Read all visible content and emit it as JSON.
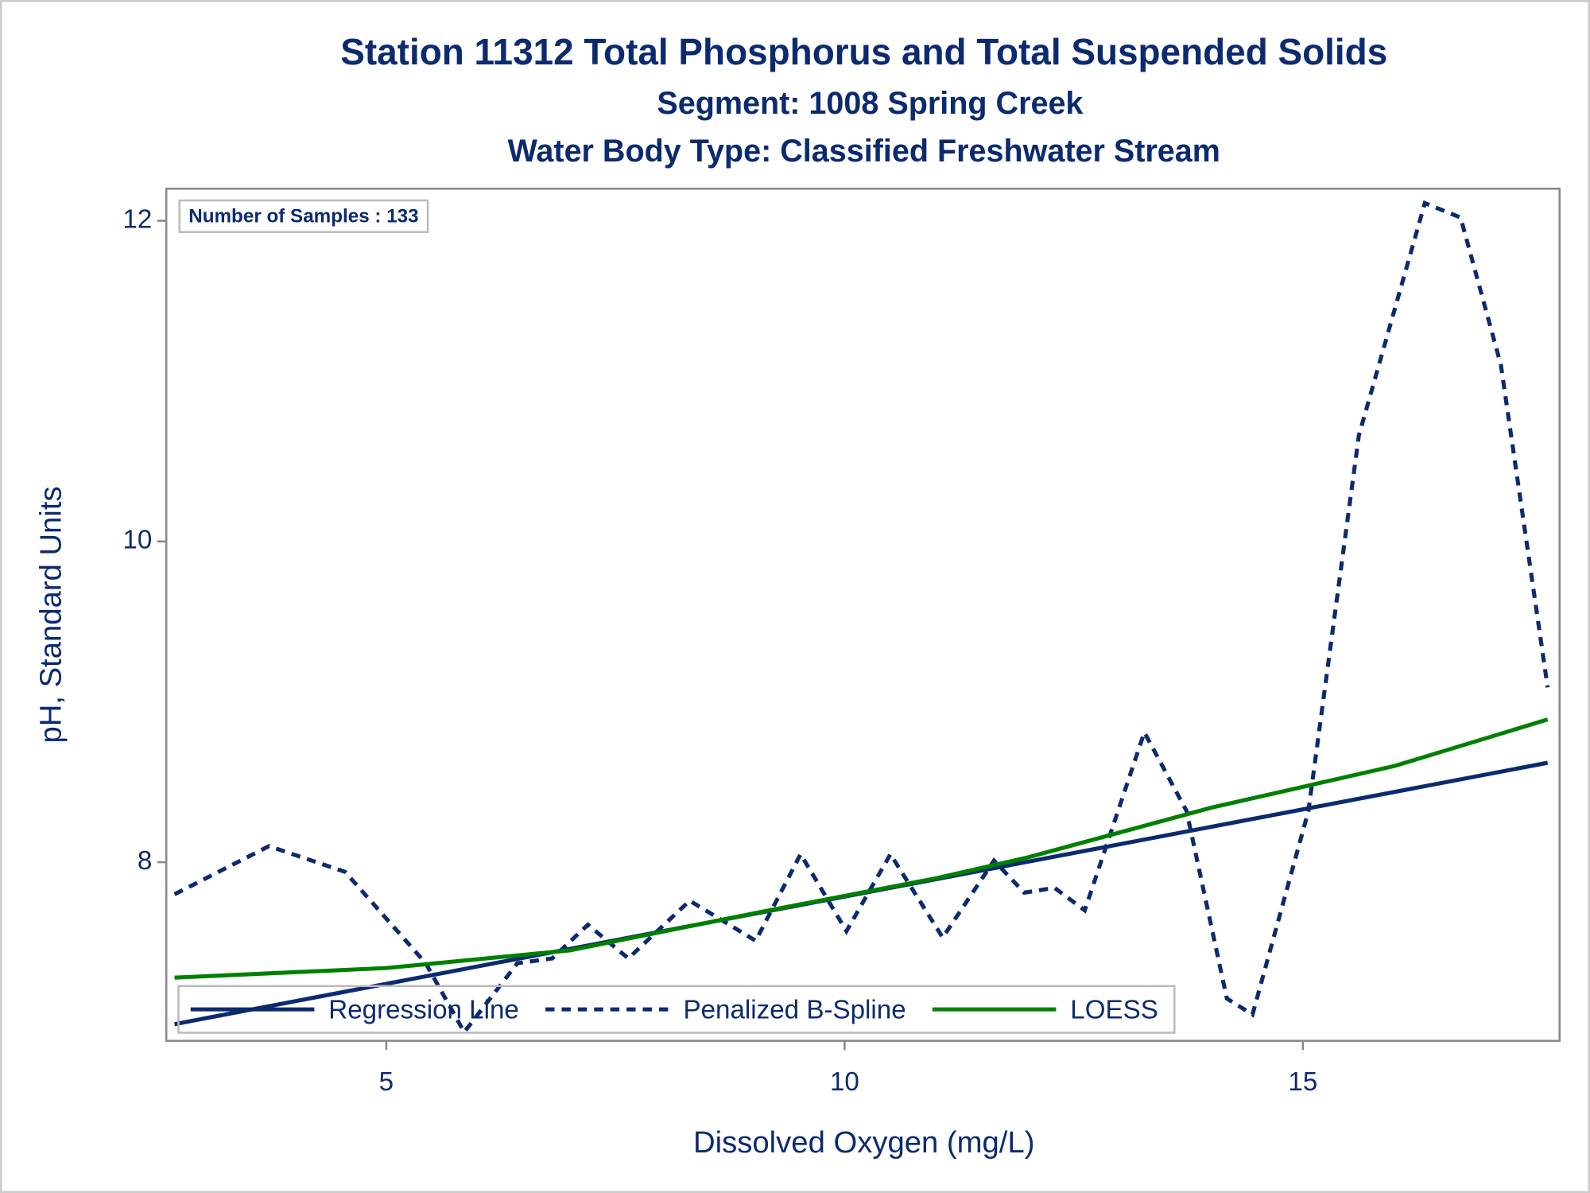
{
  "chart_data": {
    "type": "line",
    "title": "Station 11312  Total Phosphorus and Total Suspended Solids",
    "subtitle": "Segment: 1008  Spring Creek",
    "subtitle2": "Water Body Type: Classified Freshwater Stream",
    "annotation": "Number of Samples : 133",
    "x_label": "Dissolved Oxygen (mg/L)",
    "y_label": "pH, Standard Units",
    "xlim": [
      2.6,
      17.8
    ],
    "xticks": [
      5,
      10,
      15
    ],
    "ylim": [
      6.886,
      12.2
    ],
    "yticks": [
      8,
      10,
      12
    ],
    "legend": "lower left",
    "series": [
      {
        "name": "Regression Line",
        "color": "#0b2a6f",
        "dash": false,
        "x": [
          2.69,
          17.67
        ],
        "values": [
          6.99,
          8.62
        ]
      },
      {
        "name": "Penalized B-Spline",
        "color": "#0b2a6f",
        "dash": true,
        "x": [
          2.69,
          3.72,
          4.55,
          5.43,
          5.85,
          6.43,
          6.81,
          7.2,
          7.64,
          8.31,
          9.03,
          9.52,
          10.02,
          10.5,
          11.07,
          11.63,
          11.96,
          12.29,
          12.62,
          13.27,
          13.73,
          14.17,
          14.45,
          15.06,
          15.61,
          16.33,
          16.72,
          17.16,
          17.67
        ],
        "values": [
          7.8,
          8.1,
          7.94,
          7.37,
          6.94,
          7.37,
          7.4,
          7.61,
          7.4,
          7.76,
          7.51,
          8.05,
          7.57,
          8.05,
          7.53,
          8.01,
          7.81,
          7.84,
          7.7,
          8.81,
          8.32,
          7.15,
          7.05,
          8.32,
          10.66,
          12.11,
          12.02,
          11.1,
          9.09
        ]
      },
      {
        "name": "LOESS",
        "color": "#008000",
        "dash": false,
        "x": [
          2.69,
          5,
          7,
          9,
          11,
          12,
          14,
          16,
          17.67
        ],
        "values": [
          7.28,
          7.34,
          7.45,
          7.68,
          7.9,
          8.03,
          8.34,
          8.6,
          8.89
        ]
      }
    ]
  }
}
